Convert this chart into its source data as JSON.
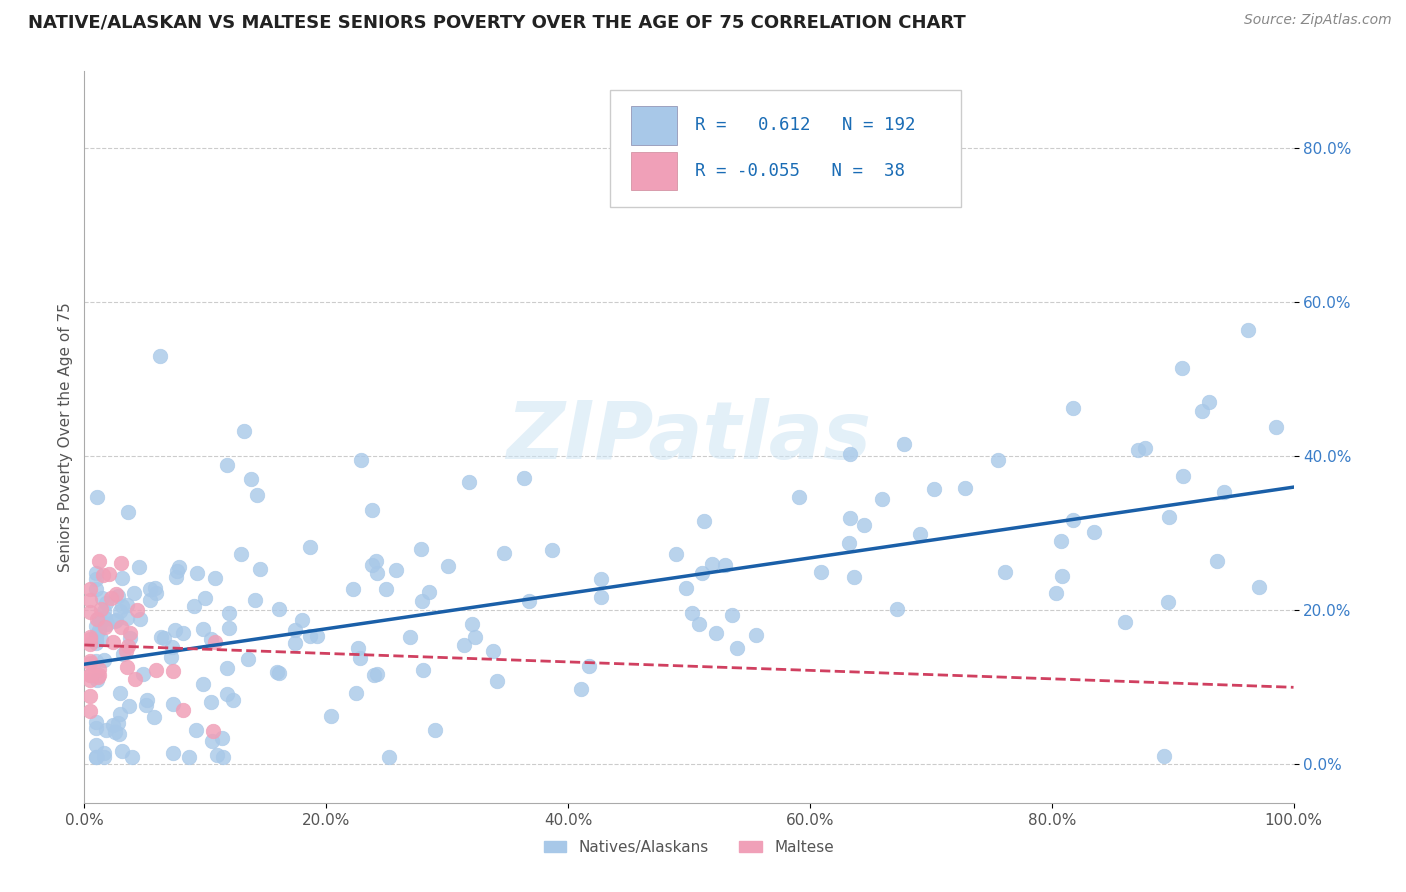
{
  "title": "NATIVE/ALASKAN VS MALTESE SENIORS POVERTY OVER THE AGE OF 75 CORRELATION CHART",
  "source": "Source: ZipAtlas.com",
  "ylabel": "Seniors Poverty Over the Age of 75",
  "xlim": [
    0.0,
    1.0
  ],
  "ylim": [
    -0.05,
    0.9
  ],
  "xticks": [
    0.0,
    0.2,
    0.4,
    0.6,
    0.8,
    1.0
  ],
  "xtick_labels": [
    "0.0%",
    "20.0%",
    "40.0%",
    "60.0%",
    "80.0%",
    "100.0%"
  ],
  "yticks": [
    0.0,
    0.2,
    0.4,
    0.6,
    0.8
  ],
  "ytick_labels": [
    "0.0%",
    "20.0%",
    "40.0%",
    "60.0%",
    "80.0%"
  ],
  "grid_color": "#cccccc",
  "background_color": "#ffffff",
  "watermark": "ZIPatlas",
  "native_color": "#a8c8e8",
  "native_edge_color": "#a8c8e8",
  "native_line_color": "#1a5fa8",
  "maltese_color": "#f0a0b8",
  "maltese_edge_color": "#f0a0b8",
  "maltese_line_color": "#d04060",
  "maltese_line_style": "--",
  "R_native": 0.612,
  "N_native": 192,
  "R_maltese": -0.055,
  "N_maltese": 38,
  "legend_labels": [
    "Natives/Alaskans",
    "Maltese"
  ],
  "title_fontsize": 13,
  "label_fontsize": 11,
  "tick_fontsize": 11,
  "native_line_start_y": 0.13,
  "native_line_end_y": 0.36,
  "maltese_line_start_y": 0.155,
  "maltese_line_end_y": 0.1
}
